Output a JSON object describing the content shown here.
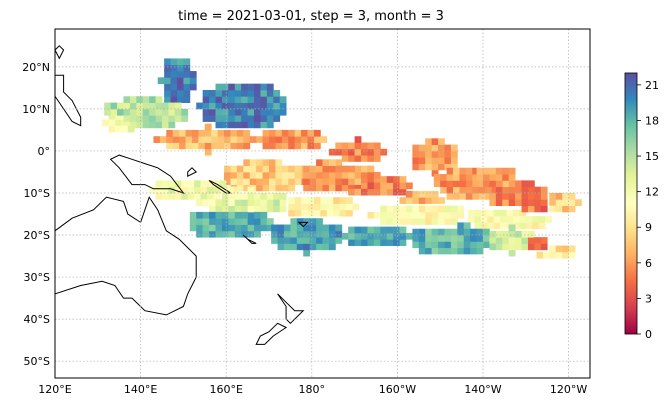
{
  "title": "time = 2021-03-01, step = 3, month = 3",
  "map": {
    "lon_range": [
      120,
      -115
    ],
    "lat_range": [
      -54,
      29
    ],
    "lon_ticks": [
      {
        "lon": 120,
        "label": "120°E"
      },
      {
        "lon": 140,
        "label": "140°E"
      },
      {
        "lon": 160,
        "label": "160°E"
      },
      {
        "lon": 180,
        "label": "180°"
      },
      {
        "lon": -160,
        "label": "160°W"
      },
      {
        "lon": -140,
        "label": "140°W"
      },
      {
        "lon": -120,
        "label": "120°W"
      }
    ],
    "lat_ticks": [
      {
        "lat": 20,
        "label": "20°N"
      },
      {
        "lat": 10,
        "label": "10°N"
      },
      {
        "lat": 0,
        "label": "0°"
      },
      {
        "lat": -10,
        "label": "10°S"
      },
      {
        "lat": -20,
        "label": "20°S"
      },
      {
        "lat": -30,
        "label": "30°S"
      },
      {
        "lat": -40,
        "label": "40°S"
      },
      {
        "lat": -50,
        "label": "50°S"
      }
    ],
    "grid": true
  },
  "colorbar": {
    "min": 0,
    "max": 22,
    "ticks": [
      0,
      3,
      6,
      9,
      12,
      15,
      18,
      21
    ],
    "colormap": "Spectral",
    "stops": [
      "#9e0142",
      "#d53e4f",
      "#f46d43",
      "#fdae61",
      "#fee08b",
      "#ffffbf",
      "#e6f598",
      "#abdda4",
      "#66c2a5",
      "#3288bd",
      "#5e4fa2"
    ]
  },
  "colors": {
    "coast": "#000000",
    "grid": "#b0b0b0",
    "region_border": "#e8e8f4"
  }
}
